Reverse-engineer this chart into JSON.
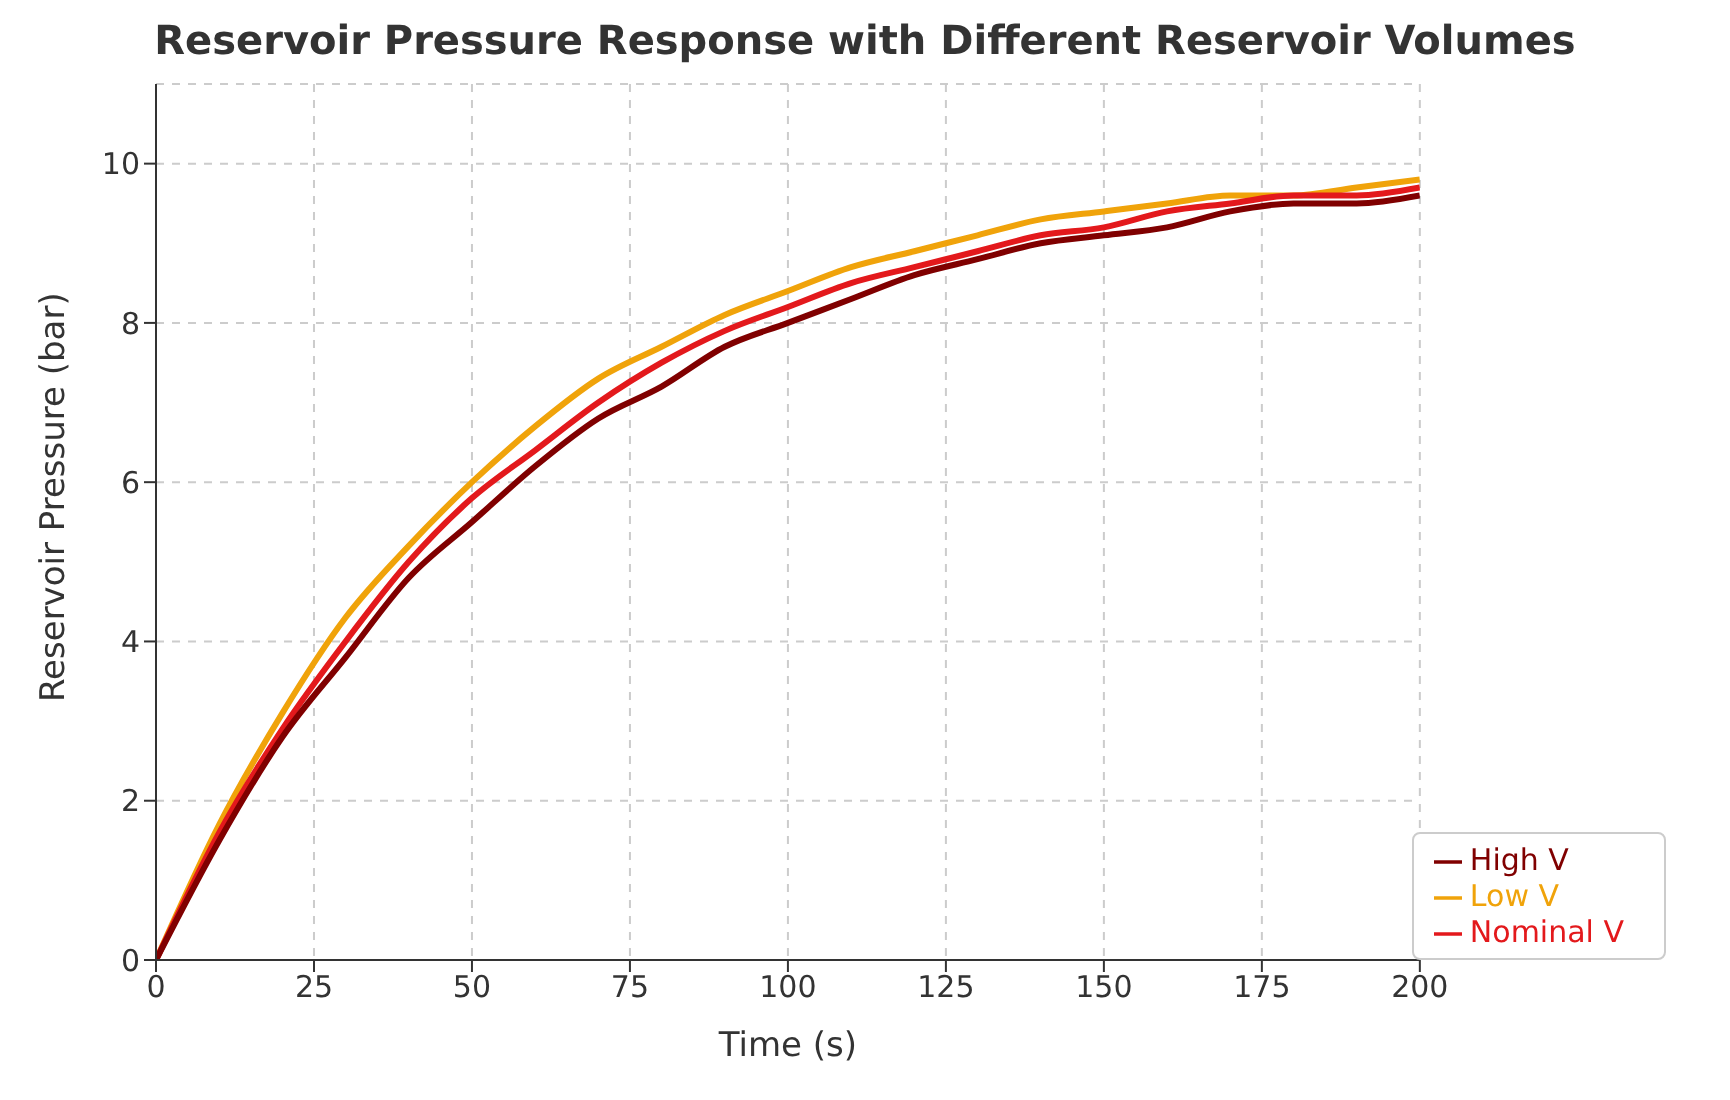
{
  "chart_data": {
    "type": "line",
    "title": "Reservoir Pressure Response with Different Reservoir Volumes",
    "xlabel": "Time (s)",
    "ylabel": "Reservoir Pressure (bar)",
    "x": [
      0,
      10,
      20,
      30,
      40,
      50,
      60,
      70,
      80,
      90,
      100,
      110,
      120,
      130,
      140,
      150,
      160,
      170,
      180,
      190,
      200
    ],
    "series": [
      {
        "name": "Low V",
        "color": "#f0a30a",
        "values": [
          0,
          1.7,
          3.1,
          4.3,
          5.2,
          6.0,
          6.7,
          7.3,
          7.7,
          8.1,
          8.4,
          8.7,
          8.9,
          9.1,
          9.3,
          9.4,
          9.5,
          9.6,
          9.6,
          9.7,
          9.8
        ]
      },
      {
        "name": "Nominal V",
        "color": "#e3191c",
        "values": [
          0,
          1.6,
          2.9,
          4.0,
          5.0,
          5.8,
          6.4,
          7.0,
          7.5,
          7.9,
          8.2,
          8.5,
          8.7,
          8.9,
          9.1,
          9.2,
          9.4,
          9.5,
          9.6,
          9.6,
          9.7
        ]
      },
      {
        "name": "High V",
        "color": "#800000",
        "values": [
          0,
          1.5,
          2.8,
          3.8,
          4.8,
          5.5,
          6.2,
          6.8,
          7.2,
          7.7,
          8.0,
          8.3,
          8.6,
          8.8,
          9.0,
          9.1,
          9.2,
          9.4,
          9.5,
          9.5,
          9.6
        ]
      }
    ],
    "xlim": [
      0,
      200
    ],
    "xticks": [
      0,
      25,
      50,
      75,
      100,
      125,
      150,
      175,
      200
    ],
    "ylim": [
      0,
      11
    ],
    "yticks": [
      0,
      2,
      4,
      6,
      8,
      10
    ],
    "grid": true,
    "legend": "bottom right",
    "marker": "none",
    "line_style": "solid"
  }
}
